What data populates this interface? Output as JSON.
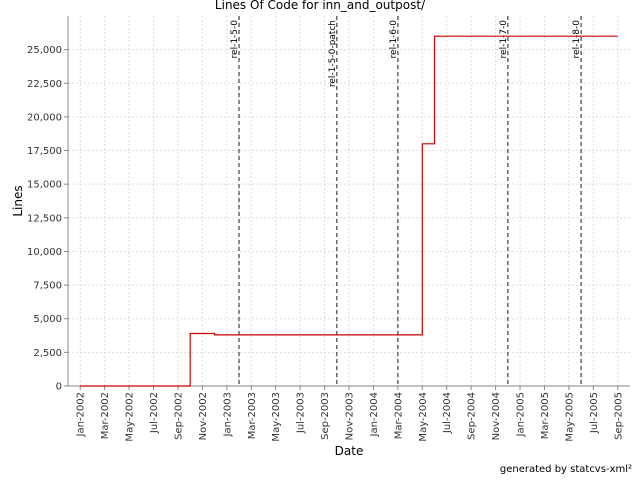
{
  "chart_data": {
    "type": "line",
    "title": "Lines Of Code for inn_and_outpost/",
    "xlabel": "Date",
    "ylabel": "Lines",
    "footer": "generated by statcvs-xml²",
    "x": [
      "2002-01",
      "2002-10",
      "2002-12",
      "2004-05",
      "2004-06",
      "2005-09"
    ],
    "series": [
      {
        "name": "Lines",
        "color": "#cc0000",
        "values": [
          0,
          3900,
          3800,
          18000,
          26000,
          26000
        ]
      }
    ],
    "step": true,
    "markers": [
      {
        "x": "2003-02",
        "label": "rel-1-5-0"
      },
      {
        "x": "2003-10",
        "label": "rel-1-5-0-patch"
      },
      {
        "x": "2004-03",
        "label": "rel-1-6-0"
      },
      {
        "x": "2004-12",
        "label": "rel-1-7-0"
      },
      {
        "x": "2005-06",
        "label": "rel-1-8-0"
      }
    ],
    "marker_color": "#666666",
    "xlim": [
      "2001-12",
      "2005-10"
    ],
    "xticks": [
      {
        "value": "2002-01",
        "label": "Jan-2002"
      },
      {
        "value": "2002-03",
        "label": "Mar-2002"
      },
      {
        "value": "2002-05",
        "label": "May-2002"
      },
      {
        "value": "2002-07",
        "label": "Jul-2002"
      },
      {
        "value": "2002-09",
        "label": "Sep-2002"
      },
      {
        "value": "2002-11",
        "label": "Nov-2002"
      },
      {
        "value": "2003-01",
        "label": "Jan-2003"
      },
      {
        "value": "2003-03",
        "label": "Mar-2003"
      },
      {
        "value": "2003-05",
        "label": "May-2003"
      },
      {
        "value": "2003-07",
        "label": "Jul-2003"
      },
      {
        "value": "2003-09",
        "label": "Sep-2003"
      },
      {
        "value": "2003-11",
        "label": "Nov-2003"
      },
      {
        "value": "2004-01",
        "label": "Jan-2004"
      },
      {
        "value": "2004-03",
        "label": "Mar-2004"
      },
      {
        "value": "2004-05",
        "label": "May-2004"
      },
      {
        "value": "2004-07",
        "label": "Jul-2004"
      },
      {
        "value": "2004-09",
        "label": "Sep-2004"
      },
      {
        "value": "2004-11",
        "label": "Nov-2004"
      },
      {
        "value": "2005-01",
        "label": "Jan-2005"
      },
      {
        "value": "2005-03",
        "label": "Mar-2005"
      },
      {
        "value": "2005-05",
        "label": "May-2005"
      },
      {
        "value": "2005-07",
        "label": "Jul-2005"
      },
      {
        "value": "2005-09",
        "label": "Sep-2005"
      }
    ],
    "ylim": [
      0,
      27500
    ],
    "yticks": [
      0,
      {
        "value": 2500,
        "label": "2,500"
      },
      {
        "value": 5000,
        "label": "5,000"
      },
      {
        "value": 7500,
        "label": "7,500"
      },
      {
        "value": 10000,
        "label": "10,000"
      },
      {
        "value": 12500,
        "label": "12,500"
      },
      {
        "value": 15000,
        "label": "15,000"
      },
      {
        "value": 17500,
        "label": "17,500"
      },
      {
        "value": 20000,
        "label": "20,000"
      },
      {
        "value": 22500,
        "label": "22,500"
      },
      {
        "value": 25000,
        "label": "25,000"
      }
    ],
    "grid": true
  }
}
